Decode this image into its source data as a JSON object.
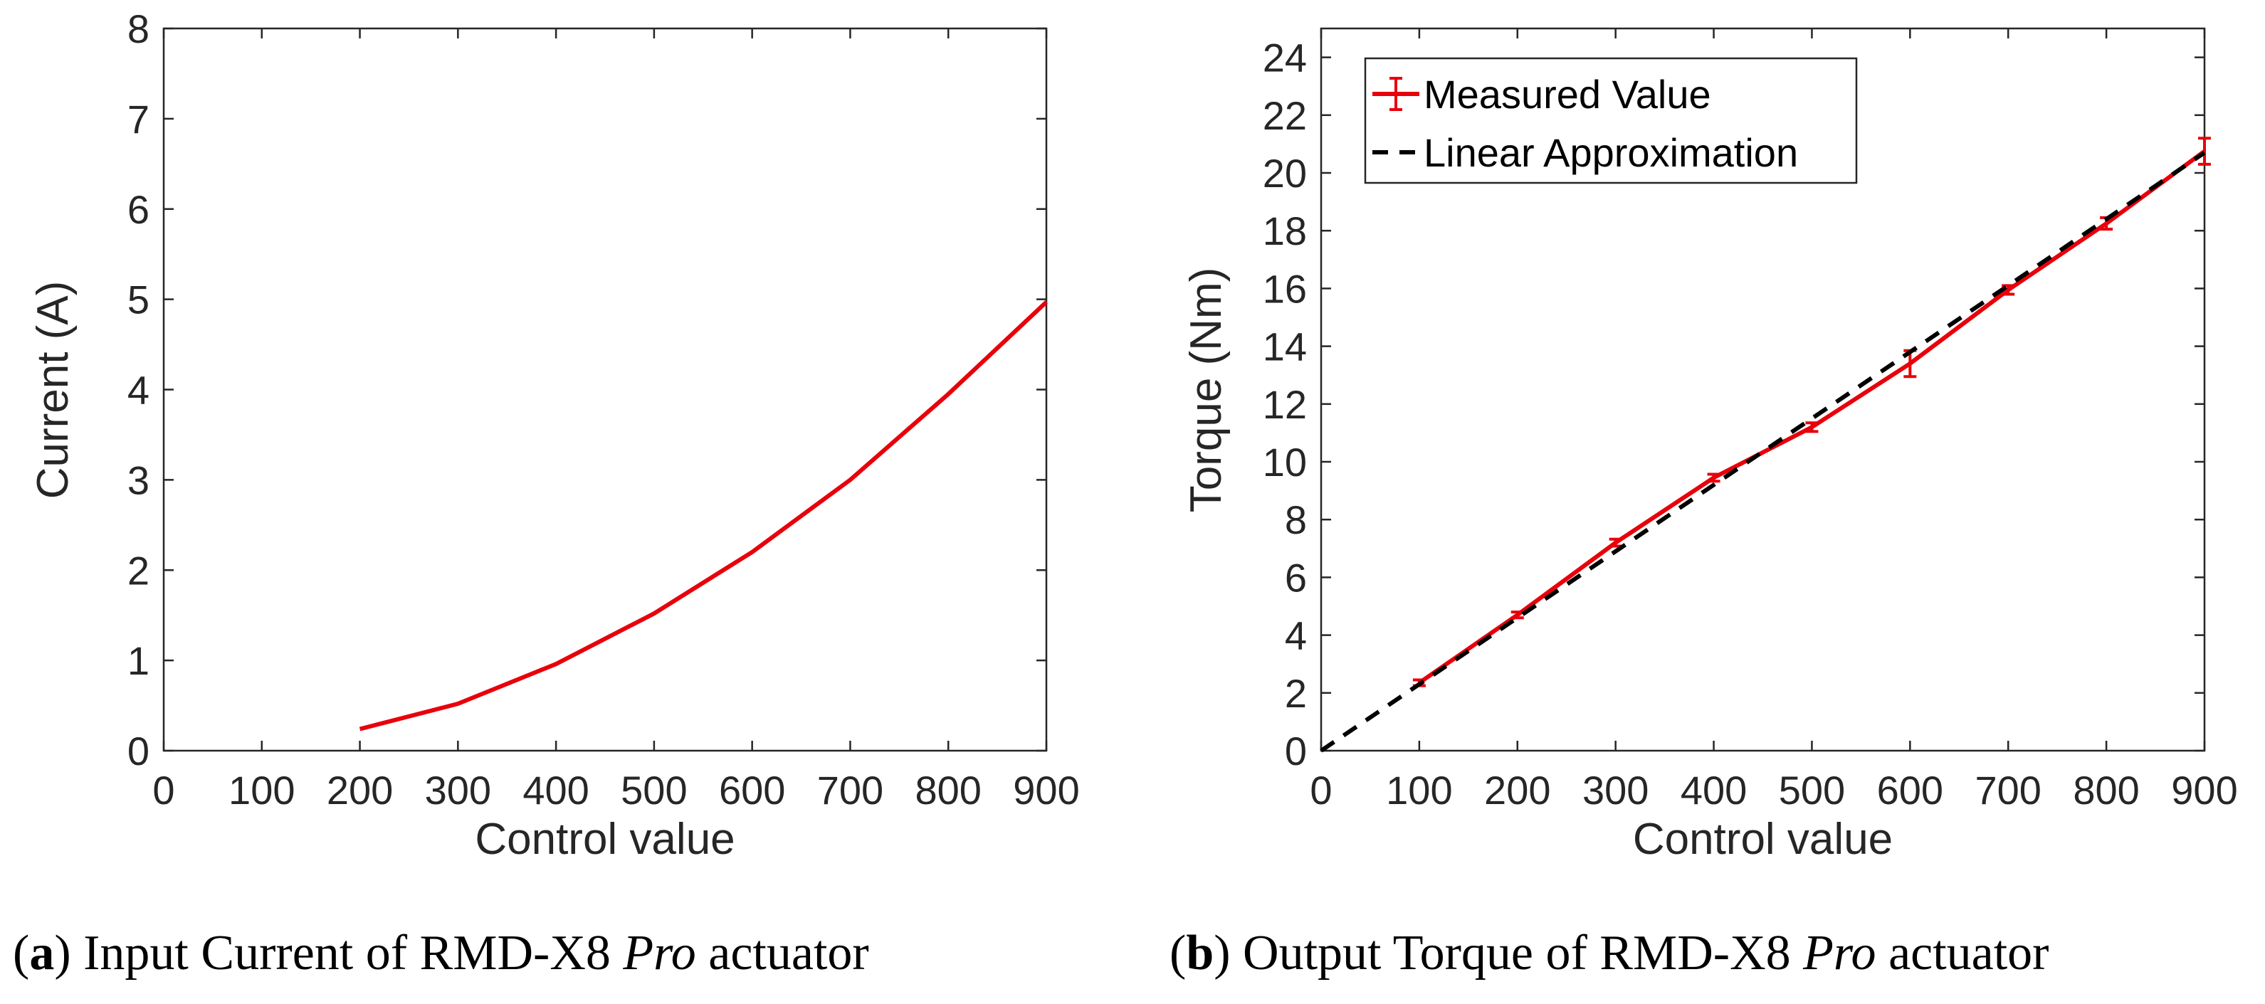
{
  "chart_data": [
    {
      "type": "line",
      "panel": "a",
      "title": "",
      "xlabel": "Control value",
      "ylabel": "Current (A)",
      "xlim": [
        0,
        900
      ],
      "ylim": [
        0,
        8
      ],
      "xticks": [
        0,
        100,
        200,
        300,
        400,
        500,
        600,
        700,
        800,
        900
      ],
      "yticks": [
        0,
        1,
        2,
        3,
        4,
        5,
        6,
        7,
        8
      ],
      "grid": false,
      "series": [
        {
          "name": "Current",
          "color": "#e8000b",
          "x": [
            200,
            300,
            400,
            500,
            600,
            700,
            800,
            900
          ],
          "y": [
            0.24,
            0.52,
            0.96,
            1.52,
            2.2,
            3.0,
            3.95,
            4.97
          ]
        }
      ]
    },
    {
      "type": "line",
      "panel": "b",
      "title": "",
      "xlabel": "Control value",
      "ylabel": "Torque (Nm)",
      "xlim": [
        0,
        900
      ],
      "ylim": [
        0,
        25
      ],
      "xticks": [
        0,
        100,
        200,
        300,
        400,
        500,
        600,
        700,
        800,
        900
      ],
      "yticks": [
        0,
        2,
        4,
        6,
        8,
        10,
        12,
        14,
        16,
        18,
        20,
        22,
        24
      ],
      "grid": false,
      "legend_position": "top-left",
      "series": [
        {
          "name": "Measured Value",
          "style": "solid-with-errorbars",
          "color": "#e8000b",
          "x": [
            100,
            200,
            300,
            400,
            500,
            600,
            700,
            800,
            900
          ],
          "y": [
            2.35,
            4.7,
            7.2,
            9.45,
            11.2,
            13.4,
            15.95,
            18.25,
            20.75
          ],
          "err": [
            0.1,
            0.1,
            0.12,
            0.12,
            0.15,
            0.45,
            0.15,
            0.2,
            0.45
          ]
        },
        {
          "name": "Linear Approximation",
          "style": "dashed",
          "color": "#000000",
          "x": [
            0,
            900
          ],
          "y": [
            0,
            20.7
          ]
        }
      ]
    }
  ],
  "captions": [
    {
      "label": "a",
      "pre": "(",
      "post": ") Input Current of RMD-X8 ",
      "italic": "Pro",
      "tail": " actuator"
    },
    {
      "label": "b",
      "pre": "(",
      "post": ") Output Torque of RMD-X8 ",
      "italic": "Pro",
      "tail": " actuator"
    }
  ]
}
